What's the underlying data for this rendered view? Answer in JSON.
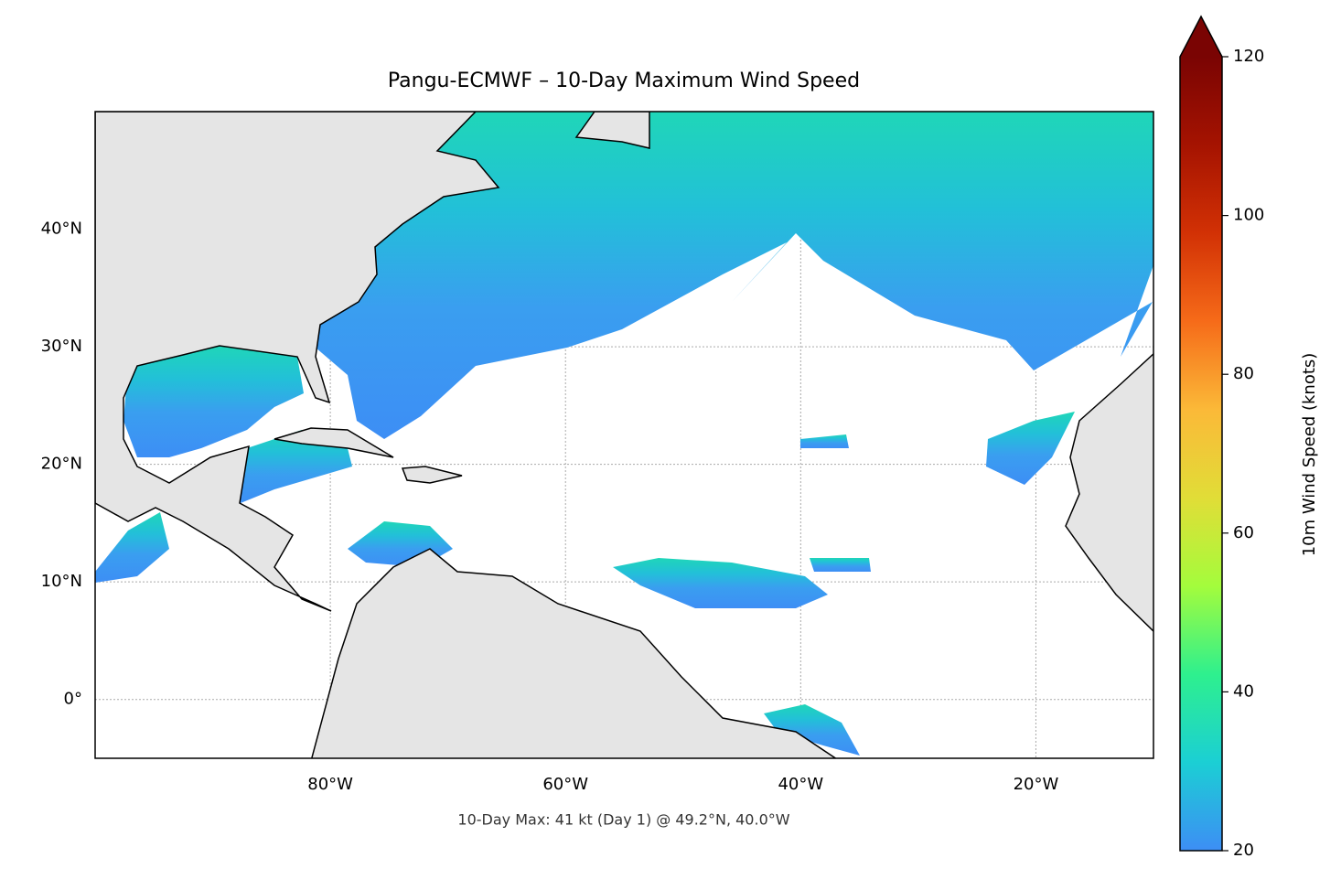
{
  "chart_data": {
    "type": "map",
    "title": "Pangu-ECMWF – 10-Day Maximum Wind Speed",
    "annotation": "10-Day Max: 41 kt (Day 1) @ 49.2°N, 40.0°W",
    "xlim": [
      -100,
      -10
    ],
    "ylim": [
      -5,
      50
    ],
    "xticks": [
      {
        "value": -80,
        "label": "80°W"
      },
      {
        "value": -60,
        "label": "60°W"
      },
      {
        "value": -40,
        "label": "40°W"
      },
      {
        "value": -20,
        "label": "20°W"
      }
    ],
    "yticks": [
      {
        "value": 0,
        "label": "0°"
      },
      {
        "value": 10,
        "label": "10°N"
      },
      {
        "value": 20,
        "label": "20°N"
      },
      {
        "value": 30,
        "label": "30°N"
      },
      {
        "value": 40,
        "label": "40°N"
      }
    ],
    "grid": true,
    "colorbar": {
      "label": "10m Wind Speed (knots)",
      "range": [
        20,
        120
      ],
      "ticks": [
        20,
        40,
        60,
        80,
        100,
        120
      ],
      "extend": "max",
      "colors": [
        "#3d8ef5",
        "#1bcfd4",
        "#2ef08e",
        "#a4fc3c",
        "#e1dd37",
        "#fbb938",
        "#f66b19",
        "#d23105",
        "#a51301",
        "#7a0403"
      ]
    }
  }
}
